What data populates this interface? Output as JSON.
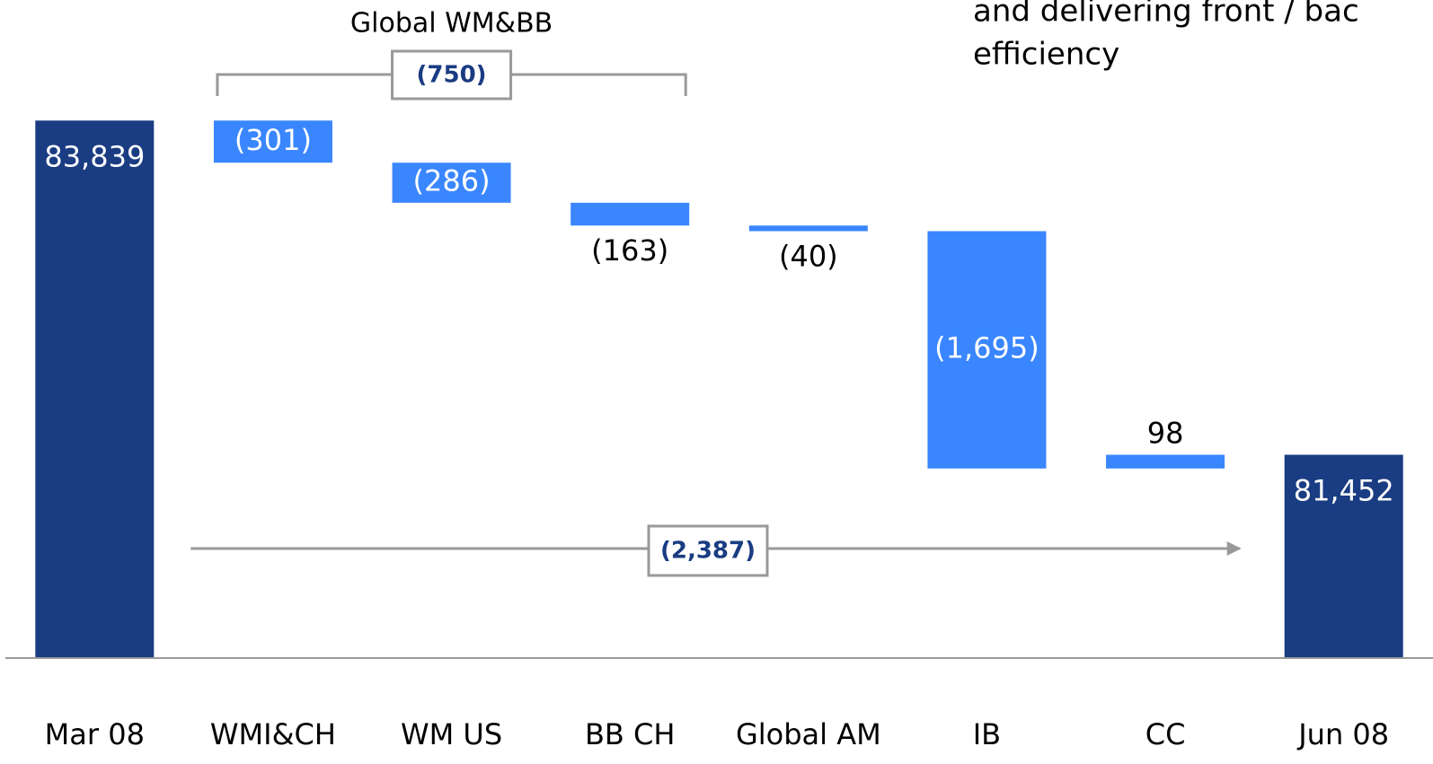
{
  "chart_data": {
    "type": "waterfall",
    "categories": [
      "Mar 08",
      "WMI&CH",
      "WM US",
      "BB CH",
      "Global AM",
      "IB",
      "CC",
      "Jun 08"
    ],
    "values": [
      83839,
      -301,
      -286,
      -163,
      -40,
      -1695,
      98,
      81452
    ],
    "value_labels": [
      "83,839",
      "(301)",
      "(286)",
      "(163)",
      "(40)",
      "(1,695)",
      "98",
      "81,452"
    ],
    "measure": [
      "absolute",
      "relative",
      "relative",
      "relative",
      "relative",
      "relative",
      "relative",
      "absolute"
    ],
    "colors": {
      "absolute": "#1a3c82",
      "relative": "#3a86ff"
    },
    "ylim": [
      80000,
      84700
    ],
    "annotations": [
      {
        "text": "Global WM&BB",
        "value": -750,
        "label": "(750)",
        "from": 1,
        "to": 3
      },
      {
        "value": -2387,
        "label": "(2,387)",
        "from": 0,
        "to": 7
      }
    ],
    "note_lines": [
      "and delivering front / bac",
      "efficiency"
    ]
  }
}
